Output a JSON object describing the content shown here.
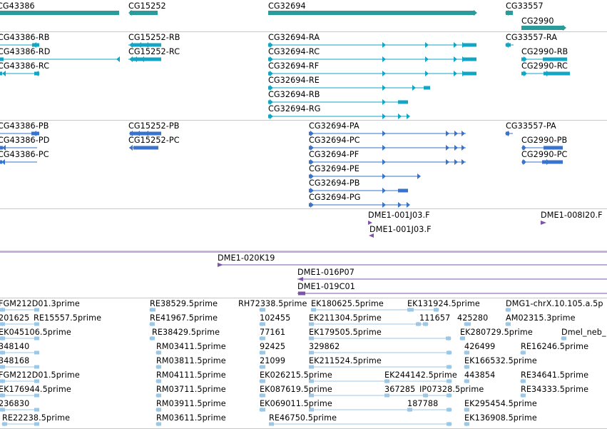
{
  "colors": {
    "gene": "#2a9a9a",
    "transcript": "#12a6c4",
    "protein": "#3a73cc",
    "clone": "#7e54a8",
    "est": "#9cc8e8",
    "separator": "#c8c8c8"
  },
  "tracks": {
    "genes": {
      "labels": [
        "CG43386",
        "CG15252",
        "CG32694",
        "CG33557",
        "CG2990"
      ]
    },
    "transcripts": {
      "labels": [
        "CG43386-RB",
        "CG43386-RD",
        "CG43386-RC",
        "CG15252-RB",
        "CG15252-RC",
        "CG32694-RA",
        "CG32694-RC",
        "CG32694-RF",
        "CG32694-RE",
        "CG32694-RB",
        "CG32694-RG",
        "CG33557-RA",
        "CG2990-RB",
        "CG2990-RC"
      ]
    },
    "proteins": {
      "labels": [
        "CG43386-PB",
        "CG43386-PD",
        "CG43386-PC",
        "CG15252-PB",
        "CG15252-PC",
        "CG32694-PA",
        "CG32694-PC",
        "CG32694-PF",
        "CG32694-PE",
        "CG32694-PB",
        "CG32694-PG",
        "CG33557-PA",
        "CG2990-PB",
        "CG2990-PC"
      ]
    },
    "clones_short": {
      "labels": [
        "DME1-001J03.F",
        "DME1-001J03.F",
        "DME1-008I20.F"
      ]
    },
    "clones_long": {
      "labels": [
        "DME1-020K19",
        "DME1-016P07",
        "DME1-019C01"
      ]
    },
    "ests": {
      "labels": [
        "FGM212D01.3prime",
        "RE38529.5prime",
        "RH72338.5prime",
        "EK180625.5prime",
        "EK131924.5prime",
        "DMG1-chrX.10.105.a.5p",
        "201625",
        "RE15557.5prime",
        "RE41967.5prime",
        "102455",
        "EK211304.5prime",
        "111657",
        "425280",
        "AM02315.3prime",
        "EK045106.5prime",
        "RE38429.5prime",
        "77161",
        "EK179505.5prime",
        "EK280729.5prime",
        "Dmel_neb_",
        "348140",
        "RM03411.5prime",
        "92425",
        "329862",
        "426499",
        "RE16246.5prime",
        "348168",
        "RM03811.5prime",
        "21099",
        "EK211524.5prime",
        "EK166532.5prime",
        "FGM212D01.5prime",
        "RM04111.5prime",
        "EK026215.5prime",
        "EK244142.5prime",
        "443854",
        "RE34641.5prime",
        "EK176944.5prime",
        "RM03711.5prime",
        "EK087619.5prime",
        "367285",
        "IP07328.5prime",
        "RE34333.5prime",
        "236830",
        "RM03911.5prime",
        "EK069011.5prime",
        "187788",
        "EK295454.5prime",
        "RE22238.5prime",
        "RM03611.5prime",
        "RE46750.5prime",
        "EK136908.5prime"
      ]
    }
  }
}
